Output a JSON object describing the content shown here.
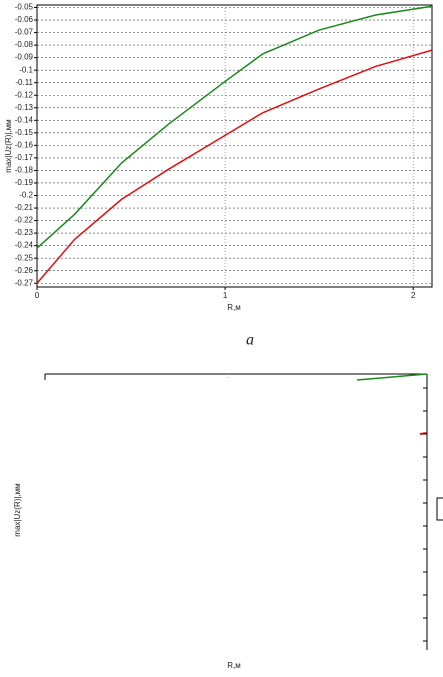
{
  "chart_data": {
    "type": "line",
    "x_label": "R,м",
    "y_label": "max|Uz(R)|,мм",
    "x": [
      0,
      0.2,
      0.45,
      0.7,
      1.0,
      1.2,
      1.5,
      1.8,
      2.1
    ],
    "series": [
      {
        "color": "#1a8a1a",
        "values": [
          -0.242,
          -0.215,
          -0.174,
          -0.143,
          -0.109,
          -0.087,
          -0.068,
          -0.056,
          -0.049
        ]
      },
      {
        "color": "#e01010",
        "values": [
          -0.27,
          -0.235,
          -0.203,
          -0.179,
          -0.152,
          -0.134,
          -0.115,
          -0.097,
          -0.084
        ]
      }
    ],
    "xlim": [
      0,
      2.1
    ],
    "xticks": [
      0,
      1,
      2
    ],
    "ylim": [
      -0.273,
      -0.048
    ],
    "yticks": [
      -0.05,
      -0.06,
      -0.07,
      -0.08,
      -0.09,
      -0.1,
      -0.11,
      -0.12,
      -0.13,
      -0.14,
      -0.15,
      -0.16,
      -0.17,
      -0.18,
      -0.19,
      -0.2,
      -0.21,
      -0.22,
      -0.23,
      -0.24,
      -0.25,
      -0.26,
      -0.27
    ],
    "grid": true
  },
  "caption": "a",
  "second_chart": {
    "x_label": "R,м",
    "y_label": "max|Uz(R)|,мм"
  }
}
